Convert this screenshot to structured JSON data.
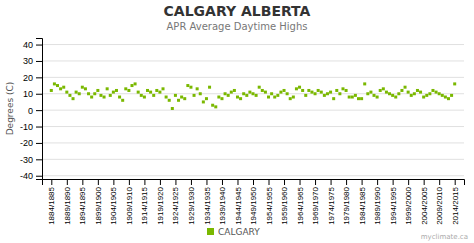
{
  "chart_data": {
    "type": "scatter",
    "title": "CALGARY ALBERTA",
    "subtitle": "APR Average Daytime Highs",
    "y_label": "Degrees (C)",
    "categories": [
      "1884/1885",
      null,
      null,
      null,
      null,
      "1889/1890",
      null,
      null,
      null,
      null,
      "1894/1895",
      null,
      null,
      null,
      null,
      "1899/1900",
      null,
      null,
      null,
      null,
      "1904/1905",
      null,
      null,
      null,
      null,
      "1909/1910",
      null,
      null,
      null,
      null,
      "1914/1915",
      null,
      null,
      null,
      null,
      "1919/1920",
      null,
      null,
      null,
      null,
      "1924/1925",
      null,
      null,
      null,
      null,
      "1929/1930",
      null,
      null,
      null,
      null,
      "1934/1935",
      null,
      null,
      null,
      null,
      "1939/1940",
      null,
      null,
      null,
      null,
      "1944/1945",
      null,
      null,
      null,
      null,
      "1949/1950",
      null,
      null,
      null,
      null,
      "1954/1955",
      null,
      null,
      null,
      null,
      "1959/1960",
      null,
      null,
      null,
      null,
      "1964/1965",
      null,
      null,
      null,
      null,
      "1969/1970",
      null,
      null,
      null,
      null,
      "1974/1975",
      null,
      null,
      null,
      null,
      "1979/1980",
      null,
      null,
      null,
      null,
      "1984/1985",
      null,
      null,
      null,
      null,
      "1989/1990",
      null,
      null,
      null,
      null,
      "1994/1995",
      null,
      null,
      null,
      null,
      "1999/2000",
      null,
      null,
      null,
      null,
      "2004/2005",
      null,
      null,
      null,
      null,
      "2009/2010",
      null,
      null,
      null,
      null,
      "2014/2015"
    ],
    "series": [
      {
        "name": "CALGARY",
        "color": "#7ab800",
        "marker": "square",
        "values": [
          12,
          16,
          15,
          13,
          14,
          11,
          9,
          7,
          11,
          10,
          14,
          13,
          10,
          8,
          10,
          12,
          9,
          8,
          13,
          9,
          11,
          12,
          8,
          6,
          13,
          12,
          15,
          16,
          11,
          9,
          8,
          12,
          11,
          9,
          12,
          11,
          13,
          8,
          6,
          1,
          9,
          6,
          8,
          7,
          15,
          14,
          9,
          13,
          10,
          5,
          7,
          14,
          3,
          2,
          8,
          7,
          10,
          9,
          11,
          12,
          8,
          7,
          10,
          9,
          11,
          10,
          9,
          14,
          12,
          11,
          8,
          10,
          8,
          9,
          11,
          12,
          10,
          7,
          8,
          13,
          14,
          12,
          9,
          12,
          11,
          10,
          12,
          11,
          9,
          10,
          11,
          7,
          12,
          10,
          13,
          12,
          8,
          8,
          9,
          7,
          7,
          16,
          10,
          11,
          9,
          8,
          12,
          13,
          11,
          10,
          9,
          8,
          10,
          12,
          14,
          11,
          9,
          10,
          12,
          11,
          8,
          9,
          10,
          12,
          11,
          10,
          9,
          8,
          7,
          9,
          16
        ]
      }
    ],
    "ylim": [
      -42,
      44
    ],
    "yticks": [
      -40,
      -30,
      -20,
      -10,
      0,
      10,
      20,
      30,
      40
    ],
    "grid": true,
    "legend": "bottom",
    "annotations": [
      "myclimate.ca"
    ]
  }
}
